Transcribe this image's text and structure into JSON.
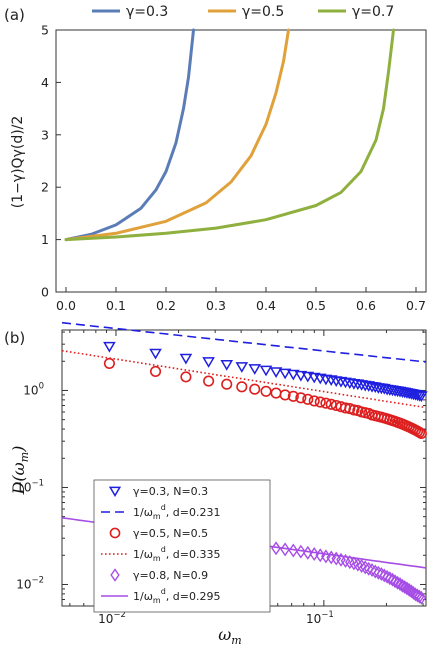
{
  "chart_data": [
    {
      "panel_label": "(a)",
      "type": "line",
      "ylabel": "(1−γ)Qγ(d)/2",
      "xlabel": "",
      "xlim": [
        -0.02,
        0.72
      ],
      "ylim": [
        0,
        5
      ],
      "xticks": [
        "0.0",
        "0.1",
        "0.2",
        "0.3",
        "0.4",
        "0.5",
        "0.6",
        "0.7"
      ],
      "yticks": [
        "0",
        "1",
        "2",
        "3",
        "4",
        "5"
      ],
      "legend_position": "top",
      "series": [
        {
          "name": "γ=0.3",
          "color": "#5b7db7",
          "points": [
            [
              0,
              1.0
            ],
            [
              0.05,
              1.1
            ],
            [
              0.1,
              1.28
            ],
            [
              0.15,
              1.6
            ],
            [
              0.18,
              1.95
            ],
            [
              0.2,
              2.3
            ],
            [
              0.22,
              2.85
            ],
            [
              0.235,
              3.5
            ],
            [
              0.245,
              4.1
            ],
            [
              0.255,
              5.0
            ]
          ]
        },
        {
          "name": "γ=0.5",
          "color": "#e0a13a",
          "points": [
            [
              0,
              1.0
            ],
            [
              0.1,
              1.12
            ],
            [
              0.2,
              1.35
            ],
            [
              0.28,
              1.7
            ],
            [
              0.33,
              2.1
            ],
            [
              0.37,
              2.6
            ],
            [
              0.4,
              3.2
            ],
            [
              0.42,
              3.8
            ],
            [
              0.435,
              4.4
            ],
            [
              0.445,
              5.0
            ]
          ]
        },
        {
          "name": "γ=0.7",
          "color": "#8fb03e",
          "points": [
            [
              0,
              1.0
            ],
            [
              0.1,
              1.05
            ],
            [
              0.2,
              1.12
            ],
            [
              0.3,
              1.22
            ],
            [
              0.4,
              1.38
            ],
            [
              0.5,
              1.65
            ],
            [
              0.55,
              1.9
            ],
            [
              0.59,
              2.3
            ],
            [
              0.62,
              2.9
            ],
            [
              0.635,
              3.5
            ],
            [
              0.645,
              4.2
            ],
            [
              0.655,
              5.0
            ]
          ]
        }
      ]
    },
    {
      "panel_label": "(b)",
      "type": "scatter",
      "xlabel": "ω",
      "xlabel_sub": "m",
      "ylabel": "D(ω",
      "ylabel_sub": "m",
      "ylabel_close": ")",
      "xscale": "log",
      "yscale": "log",
      "xlim": [
        0.0055,
        0.31
      ],
      "ylim": [
        0.006,
        4.2
      ],
      "xticks": [
        {
          "value": 0.01,
          "base": "10",
          "exp": "−2"
        },
        {
          "value": 0.1,
          "base": "10",
          "exp": "−1"
        }
      ],
      "yticks": [
        {
          "value": 0.01,
          "base": "10",
          "exp": "−2"
        },
        {
          "value": 0.1,
          "base": "10",
          "exp": "−1"
        },
        {
          "value": 1,
          "base": "10",
          "exp": "0"
        }
      ],
      "legend_position": "left",
      "legend": [
        {
          "kind": "marker",
          "marker": "triangle-down",
          "color": "#1f1fe0",
          "text": "γ=0.3, N=0.3"
        },
        {
          "kind": "line",
          "dash": "dashed",
          "color": "#1f1fe0",
          "text_pre": "1/ω",
          "text_sub": "m",
          "text_sup": "d",
          "text_post": ", d=0.231"
        },
        {
          "kind": "marker",
          "marker": "circle",
          "color": "#dd1f1f",
          "text": "γ=0.5, N=0.5"
        },
        {
          "kind": "line",
          "dash": "dotted",
          "color": "#dd1f1f",
          "text_pre": "1/ω",
          "text_sub": "m",
          "text_sup": "d",
          "text_post": ", d=0.335"
        },
        {
          "kind": "marker",
          "marker": "diamond",
          "color": "#a64de6",
          "text": "γ=0.8, N=0.9"
        },
        {
          "kind": "line",
          "dash": "solid",
          "color": "#a64de6",
          "text_pre": "1/ω",
          "text_sub": "m",
          "text_sup": "d",
          "text_post": ", d=0.295"
        }
      ],
      "marker_series": [
        {
          "marker": "triangle-down",
          "color": "#1f1fe0",
          "x": [
            0.0093,
            0.0155,
            0.0217,
            0.0279,
            0.0341,
            0.0403,
            0.0465,
            0.0527,
            0.0589,
            0.0651,
            0.0713,
            0.0775,
            0.0837,
            0.0899,
            0.0961,
            0.1023,
            0.1085,
            0.1147,
            0.1209,
            0.1271,
            0.1333,
            0.1395,
            0.1457,
            0.1519,
            0.1581,
            0.1643,
            0.1705,
            0.1767,
            0.1829,
            0.1891,
            0.1953,
            0.2015,
            0.2077,
            0.2139,
            0.2201,
            0.2263,
            0.2325,
            0.2387,
            0.2449,
            0.2511,
            0.2573,
            0.2635,
            0.2697,
            0.2759,
            0.2821,
            0.2883,
            0.2945
          ],
          "y": [
            2.85,
            2.42,
            2.15,
            1.98,
            1.85,
            1.76,
            1.68,
            1.62,
            1.56,
            1.51,
            1.47,
            1.43,
            1.4,
            1.37,
            1.34,
            1.31,
            1.29,
            1.26,
            1.24,
            1.22,
            1.2,
            1.18,
            1.17,
            1.15,
            1.13,
            1.12,
            1.1,
            1.09,
            1.07,
            1.06,
            1.05,
            1.03,
            1.02,
            1.01,
            1.0,
            0.99,
            0.98,
            0.97,
            0.96,
            0.95,
            0.94,
            0.93,
            0.92,
            0.91,
            0.9,
            0.89,
            0.88
          ]
        },
        {
          "marker": "circle",
          "color": "#dd1f1f",
          "x": [
            0.0093,
            0.0155,
            0.0217,
            0.0279,
            0.0341,
            0.0403,
            0.0465,
            0.0527,
            0.0589,
            0.0651,
            0.0713,
            0.0775,
            0.0837,
            0.0899,
            0.0961,
            0.1023,
            0.1085,
            0.1147,
            0.1209,
            0.1271,
            0.1333,
            0.1395,
            0.1457,
            0.1519,
            0.1581,
            0.1643,
            0.1705,
            0.1767,
            0.1829,
            0.1891,
            0.1953,
            0.2015,
            0.2077,
            0.2139,
            0.2201,
            0.2263,
            0.2325,
            0.2387,
            0.2449,
            0.2511,
            0.2573,
            0.2635,
            0.2697,
            0.2759,
            0.2821,
            0.2883,
            0.2945
          ],
          "y": [
            1.9,
            1.57,
            1.38,
            1.25,
            1.16,
            1.09,
            1.03,
            0.98,
            0.94,
            0.9,
            0.87,
            0.84,
            0.81,
            0.78,
            0.76,
            0.74,
            0.72,
            0.7,
            0.68,
            0.66,
            0.65,
            0.63,
            0.62,
            0.6,
            0.59,
            0.58,
            0.56,
            0.55,
            0.54,
            0.53,
            0.52,
            0.51,
            0.5,
            0.49,
            0.48,
            0.47,
            0.46,
            0.45,
            0.44,
            0.43,
            0.42,
            0.41,
            0.4,
            0.39,
            0.38,
            0.37,
            0.36
          ]
        },
        {
          "marker": "diamond",
          "color": "#a64de6",
          "x": [
            0.0093,
            0.0155,
            0.0217,
            0.0279,
            0.0341,
            0.0403,
            0.0465,
            0.0527,
            0.0589,
            0.0651,
            0.0713,
            0.0775,
            0.0837,
            0.0899,
            0.0961,
            0.1023,
            0.1085,
            0.1147,
            0.1209,
            0.1271,
            0.1333,
            0.1395,
            0.1457,
            0.1519,
            0.1581,
            0.1643,
            0.1705,
            0.1767,
            0.1829,
            0.1891,
            0.1953,
            0.2015,
            0.2077,
            0.2139,
            0.2201,
            0.2263,
            0.2325,
            0.2387,
            0.2449,
            0.2511,
            0.2573,
            0.2635,
            0.2697,
            0.2759,
            0.2821,
            0.2883,
            0.2945
          ],
          "y": [
            0.041,
            0.035,
            0.031,
            0.029,
            0.0275,
            0.0262,
            0.0252,
            0.0244,
            0.0236,
            0.023,
            0.0224,
            0.0218,
            0.0212,
            0.0206,
            0.02,
            0.0195,
            0.019,
            0.0185,
            0.018,
            0.0175,
            0.017,
            0.0165,
            0.016,
            0.0155,
            0.015,
            0.0145,
            0.0141,
            0.0136,
            0.0132,
            0.0128,
            0.0124,
            0.012,
            0.0116,
            0.0112,
            0.0108,
            0.0104,
            0.0101,
            0.0097,
            0.0094,
            0.0091,
            0.0088,
            0.0085,
            0.0082,
            0.0079,
            0.0077,
            0.0075,
            0.0073
          ]
        }
      ],
      "fit_lines": [
        {
          "dash": "dashed",
          "color": "#1f1fe0",
          "d": 0.231,
          "a": 1.5
        },
        {
          "dash": "dotted",
          "color": "#dd1f1f",
          "d": 0.335,
          "a": 0.45
        },
        {
          "dash": "solid",
          "color": "#a64de6",
          "d": 0.295,
          "a": 0.0105
        }
      ]
    }
  ]
}
